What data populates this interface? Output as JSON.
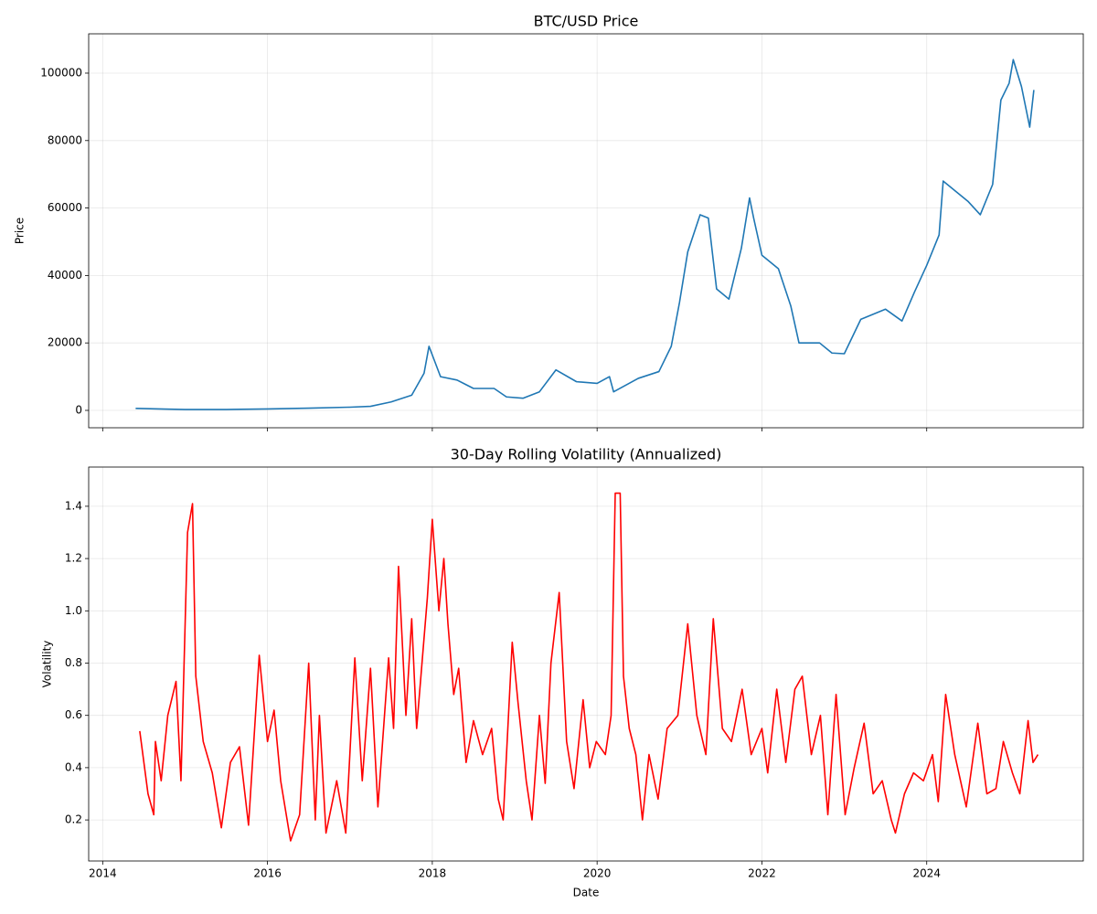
{
  "chart_data": [
    {
      "type": "line",
      "title": "BTC/USD Price",
      "ylabel": "Price",
      "grid": true,
      "xlim": [
        2013.83,
        2025.9
      ],
      "ylim": [
        -5150,
        111650
      ],
      "yticks": [
        0,
        20000,
        40000,
        60000,
        80000,
        100000
      ],
      "series": [
        {
          "name": "Price",
          "color": "#1f77b4",
          "x": [
            2014.4,
            2014.75,
            2015.0,
            2015.5,
            2016.0,
            2016.5,
            2017.0,
            2017.25,
            2017.5,
            2017.75,
            2017.9,
            2017.96,
            2018.1,
            2018.3,
            2018.5,
            2018.75,
            2018.9,
            2019.1,
            2019.3,
            2019.5,
            2019.75,
            2020.0,
            2020.15,
            2020.2,
            2020.5,
            2020.75,
            2020.9,
            2021.0,
            2021.1,
            2021.25,
            2021.35,
            2021.45,
            2021.6,
            2021.75,
            2021.85,
            2021.9,
            2022.0,
            2022.2,
            2022.35,
            2022.45,
            2022.7,
            2022.85,
            2023.0,
            2023.2,
            2023.5,
            2023.7,
            2023.85,
            2024.0,
            2024.15,
            2024.2,
            2024.5,
            2024.65,
            2024.8,
            2024.9,
            2025.0,
            2025.05,
            2025.15,
            2025.25,
            2025.3
          ],
          "values": [
            600,
            400,
            250,
            250,
            430,
            650,
            950,
            1200,
            2500,
            4500,
            11000,
            19000,
            10000,
            9000,
            6500,
            6500,
            4000,
            3600,
            5500,
            12000,
            8500,
            8000,
            10000,
            5500,
            9500,
            11500,
            19000,
            32000,
            47000,
            58000,
            57000,
            36000,
            33000,
            48000,
            63000,
            57000,
            46000,
            42000,
            31000,
            20000,
            20000,
            17000,
            16800,
            27000,
            30000,
            26500,
            35000,
            43000,
            52000,
            68000,
            62000,
            58000,
            67000,
            92000,
            97000,
            104000,
            96000,
            84000,
            95000
          ]
        }
      ]
    },
    {
      "type": "line",
      "title": "30-Day Rolling Volatility (Annualized)",
      "xlabel": "Date",
      "ylabel": "Volatility",
      "grid": true,
      "xlim": [
        2013.83,
        2025.9
      ],
      "ylim": [
        0.043,
        1.55
      ],
      "xticks": [
        2014,
        2016,
        2018,
        2020,
        2022,
        2024
      ],
      "yticks": [
        0.2,
        0.4,
        0.6,
        0.8,
        {
          "value": 1,
          "label": "1.0"
        },
        1.2,
        1.4
      ],
      "series": [
        {
          "name": "Volatility",
          "color": "#ff0000",
          "x": [
            2014.45,
            2014.55,
            2014.62,
            2014.64,
            2014.71,
            2014.79,
            2014.89,
            2014.95,
            2015.03,
            2015.09,
            2015.13,
            2015.22,
            2015.33,
            2015.44,
            2015.55,
            2015.66,
            2015.77,
            2015.9,
            2016.0,
            2016.08,
            2016.16,
            2016.28,
            2016.39,
            2016.5,
            2016.58,
            2016.63,
            2016.71,
            2016.84,
            2016.95,
            2017.06,
            2017.15,
            2017.25,
            2017.34,
            2017.47,
            2017.53,
            2017.59,
            2017.68,
            2017.75,
            2017.81,
            2017.94,
            2018.0,
            2018.08,
            2018.14,
            2018.19,
            2018.26,
            2018.32,
            2018.41,
            2018.5,
            2018.61,
            2018.72,
            2018.8,
            2018.86,
            2018.97,
            2019.04,
            2019.14,
            2019.21,
            2019.3,
            2019.37,
            2019.44,
            2019.54,
            2019.63,
            2019.72,
            2019.83,
            2019.91,
            2019.99,
            2020.1,
            2020.17,
            2020.22,
            2020.28,
            2020.32,
            2020.39,
            2020.47,
            2020.55,
            2020.63,
            2020.74,
            2020.85,
            2020.98,
            2021.1,
            2021.21,
            2021.32,
            2021.41,
            2021.52,
            2021.63,
            2021.76,
            2021.87,
            2022.0,
            2022.07,
            2022.18,
            2022.29,
            2022.4,
            2022.49,
            2022.6,
            2022.71,
            2022.8,
            2022.9,
            2023.01,
            2023.12,
            2023.24,
            2023.35,
            2023.46,
            2023.57,
            2023.62,
            2023.73,
            2023.84,
            2023.96,
            2024.07,
            2024.14,
            2024.23,
            2024.34,
            2024.48,
            2024.62,
            2024.73,
            2024.84,
            2024.93,
            2025.04,
            2025.13,
            2025.23,
            2025.29,
            2025.35
          ],
          "values": [
            0.54,
            0.3,
            0.22,
            0.5,
            0.35,
            0.6,
            0.73,
            0.35,
            1.3,
            1.41,
            0.75,
            0.5,
            0.38,
            0.17,
            0.42,
            0.48,
            0.18,
            0.83,
            0.5,
            0.62,
            0.35,
            0.12,
            0.22,
            0.8,
            0.2,
            0.6,
            0.15,
            0.35,
            0.15,
            0.82,
            0.35,
            0.78,
            0.25,
            0.82,
            0.55,
            1.17,
            0.6,
            0.97,
            0.55,
            1.05,
            1.35,
            1.0,
            1.2,
            0.95,
            0.68,
            0.78,
            0.42,
            0.58,
            0.45,
            0.55,
            0.28,
            0.2,
            0.88,
            0.65,
            0.35,
            0.2,
            0.6,
            0.34,
            0.8,
            1.07,
            0.5,
            0.32,
            0.66,
            0.4,
            0.5,
            0.45,
            0.6,
            1.45,
            1.45,
            0.75,
            0.55,
            0.45,
            0.2,
            0.45,
            0.28,
            0.55,
            0.6,
            0.95,
            0.6,
            0.45,
            0.97,
            0.55,
            0.5,
            0.7,
            0.45,
            0.55,
            0.38,
            0.7,
            0.42,
            0.7,
            0.75,
            0.45,
            0.6,
            0.22,
            0.68,
            0.22,
            0.4,
            0.57,
            0.3,
            0.35,
            0.2,
            0.15,
            0.3,
            0.38,
            0.35,
            0.45,
            0.27,
            0.68,
            0.45,
            0.25,
            0.57,
            0.3,
            0.32,
            0.5,
            0.38,
            0.3,
            0.58,
            0.42,
            0.45
          ]
        }
      ]
    }
  ]
}
